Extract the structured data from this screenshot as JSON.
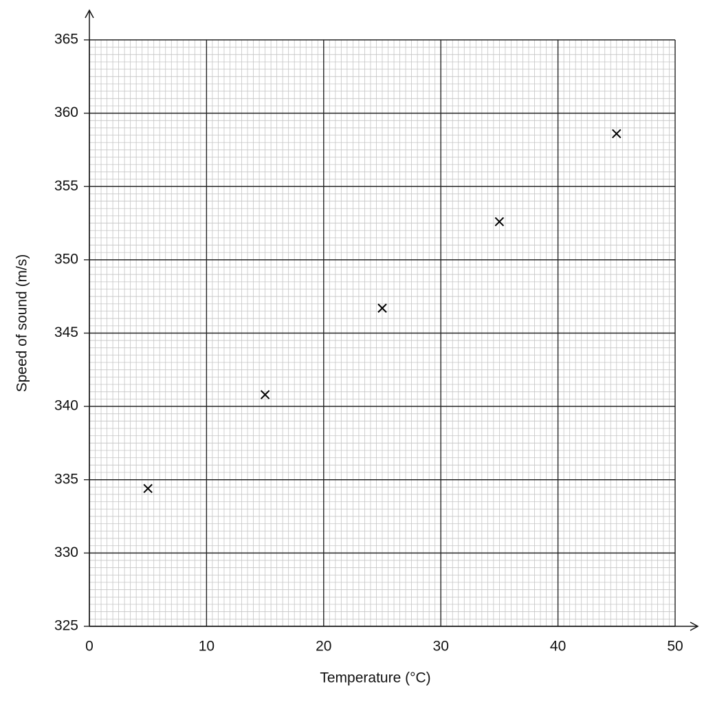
{
  "chart_data": {
    "type": "scatter",
    "x_label": "Temperature (°C)",
    "y_label": "Speed of sound (m/s)",
    "x": [
      5,
      15,
      25,
      35,
      45
    ],
    "values": [
      334.4,
      340.8,
      346.7,
      352.6,
      358.6
    ],
    "color": "#000000",
    "xlim": [
      0,
      50
    ],
    "xticks": [
      0,
      10,
      20,
      30,
      40,
      50
    ],
    "ylim": [
      325,
      365
    ],
    "yticks": [
      325,
      330,
      335,
      340,
      345,
      350,
      355,
      360,
      365
    ],
    "grid": true
  }
}
